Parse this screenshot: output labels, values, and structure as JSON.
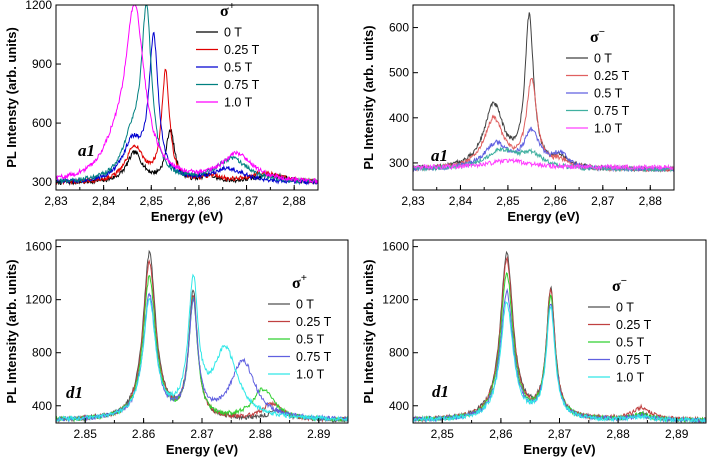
{
  "chart_data": [
    {
      "id": "a1-sigma-plus",
      "type": "line",
      "panel_tag": "a1",
      "legend_title": "σ",
      "legend_sup": "+",
      "xlabel": "Energy (eV)",
      "ylabel": "PL Intensty (arb. units)",
      "xlim": [
        2.83,
        2.885
      ],
      "ylim": [
        260,
        1200
      ],
      "xticks": [
        2.83,
        2.84,
        2.85,
        2.86,
        2.87,
        2.88
      ],
      "xtick_labels": [
        "2,83",
        "2,84",
        "2,85",
        "2,86",
        "2,87",
        "2,88"
      ],
      "yticks": [
        300,
        600,
        900,
        1200
      ],
      "ytick_labels": [
        "300",
        "600",
        "900",
        "1200"
      ],
      "legend_position": "top-right",
      "series": [
        {
          "name": "0 T",
          "color": "#000000",
          "baseline": 295,
          "peaks": [
            [
              2.8465,
              150,
              0.002
            ],
            [
              2.854,
              260,
              0.0011
            ],
            [
              2.862,
              30,
              0.002
            ],
            [
              2.875,
              40,
              0.004
            ]
          ]
        },
        {
          "name": "0.25 T",
          "color": "#e00000",
          "baseline": 295,
          "peaks": [
            [
              2.8465,
              180,
              0.0022
            ],
            [
              2.853,
              550,
              0.001
            ],
            [
              2.863,
              30,
              0.002
            ],
            [
              2.874,
              50,
              0.004
            ]
          ]
        },
        {
          "name": "0.5 T",
          "color": "#0000d0",
          "baseline": 295,
          "peaks": [
            [
              2.846,
              190,
              0.0025
            ],
            [
              2.8505,
              710,
              0.0012
            ],
            [
              2.866,
              70,
              0.004
            ]
          ]
        },
        {
          "name": "0.75 T",
          "color": "#008080",
          "baseline": 295,
          "peaks": [
            [
              2.846,
              200,
              0.0025
            ],
            [
              2.849,
              820,
              0.0013
            ],
            [
              2.867,
              120,
              0.004
            ]
          ]
        },
        {
          "name": "1.0 T",
          "color": "#ff00ff",
          "baseline": 295,
          "peaks": [
            [
              2.8465,
              880,
              0.0025
            ],
            [
              2.842,
              100,
              0.003
            ],
            [
              2.868,
              140,
              0.004
            ]
          ]
        }
      ]
    },
    {
      "id": "a1-sigma-minus",
      "type": "line",
      "panel_tag": "a1",
      "legend_title": "σ",
      "legend_sup": "−",
      "xlabel": "Energy (eV)",
      "ylabel": "PL Intensity (arb. units)",
      "xlim": [
        2.83,
        2.885
      ],
      "ylim": [
        240,
        650
      ],
      "xticks": [
        2.83,
        2.84,
        2.85,
        2.86,
        2.87,
        2.88
      ],
      "xtick_labels": [
        "2,83",
        "2,84",
        "2,85",
        "2,86",
        "2,87",
        "2,88"
      ],
      "yticks": [
        300,
        400,
        500,
        600
      ],
      "ytick_labels": [
        "300",
        "400",
        "500",
        "600"
      ],
      "legend_position": "top-right",
      "series": [
        {
          "name": "0 T",
          "color": "#404040",
          "baseline": 285,
          "peaks": [
            [
              2.847,
              140,
              0.0025
            ],
            [
              2.8545,
              330,
              0.0011
            ],
            [
              2.861,
              20,
              0.002
            ]
          ]
        },
        {
          "name": "0.25 T",
          "color": "#e06060",
          "baseline": 285,
          "peaks": [
            [
              2.847,
              110,
              0.0025
            ],
            [
              2.855,
              195,
              0.0013
            ],
            [
              2.861,
              15,
              0.002
            ]
          ]
        },
        {
          "name": "0.5 T",
          "color": "#6060e0",
          "baseline": 285,
          "peaks": [
            [
              2.8475,
              55,
              0.003
            ],
            [
              2.855,
              80,
              0.002
            ],
            [
              2.861,
              30,
              0.002
            ]
          ]
        },
        {
          "name": "0.75 T",
          "color": "#40b0a0",
          "baseline": 285,
          "peaks": [
            [
              2.8485,
              40,
              0.004
            ],
            [
              2.855,
              30,
              0.003
            ]
          ]
        },
        {
          "name": "1.0 T",
          "color": "#ff40ff",
          "baseline": 290,
          "peaks": [
            [
              2.85,
              15,
              0.005
            ]
          ]
        }
      ]
    },
    {
      "id": "d1-sigma-plus",
      "type": "line",
      "panel_tag": "d1",
      "legend_title": "σ",
      "legend_sup": "+",
      "xlabel": "Energy (eV)",
      "ylabel": "PL Intensity (arb. units)",
      "xlim": [
        2.845,
        2.895
      ],
      "ylim": [
        270,
        1650
      ],
      "xticks": [
        2.85,
        2.86,
        2.87,
        2.88,
        2.89
      ],
      "xtick_labels": [
        "2.85",
        "2.86",
        "2.87",
        "2.88",
        "2.89"
      ],
      "yticks": [
        400,
        800,
        1200,
        1600
      ],
      "ytick_labels": [
        "400",
        "800",
        "1200",
        "1600"
      ],
      "legend_position": "top-right",
      "series": [
        {
          "name": "0 T",
          "color": "#505050",
          "baseline": 290,
          "peaks": [
            [
              2.861,
              1250,
              0.0013
            ],
            [
              2.8685,
              950,
              0.0009
            ],
            [
              2.883,
              70,
              0.0018
            ]
          ]
        },
        {
          "name": "0.25 T",
          "color": "#c04040",
          "baseline": 290,
          "peaks": [
            [
              2.861,
              1180,
              0.0013
            ],
            [
              2.8685,
              900,
              0.0009
            ],
            [
              2.882,
              120,
              0.002
            ]
          ]
        },
        {
          "name": "0.5 T",
          "color": "#30d030",
          "baseline": 290,
          "peaks": [
            [
              2.861,
              1070,
              0.0013
            ],
            [
              2.8685,
              880,
              0.0009
            ],
            [
              2.8805,
              230,
              0.0022
            ]
          ]
        },
        {
          "name": "0.75 T",
          "color": "#6060e0",
          "baseline": 290,
          "peaks": [
            [
              2.861,
              930,
              0.0013
            ],
            [
              2.8685,
              860,
              0.0009
            ],
            [
              2.877,
              440,
              0.0025
            ]
          ]
        },
        {
          "name": "1.0 T",
          "color": "#30e8e8",
          "baseline": 290,
          "peaks": [
            [
              2.861,
              880,
              0.0013
            ],
            [
              2.8685,
              990,
              0.001
            ],
            [
              2.874,
              520,
              0.0025
            ]
          ]
        }
      ]
    },
    {
      "id": "d1-sigma-minus",
      "type": "line",
      "panel_tag": "d1",
      "legend_title": "σ",
      "legend_sup": "−",
      "xlabel": "Energy (eV)",
      "ylabel": "PL Intensity (arb. units)",
      "xlim": [
        2.845,
        2.895
      ],
      "ylim": [
        270,
        1650
      ],
      "xticks": [
        2.85,
        2.86,
        2.87,
        2.88,
        2.89
      ],
      "xtick_labels": [
        "2,85",
        "2,86",
        "2,87",
        "2,88",
        "2,89"
      ],
      "yticks": [
        400,
        800,
        1200,
        1600
      ],
      "ytick_labels": [
        "400",
        "800",
        "1200",
        "1600"
      ],
      "legend_position": "top-right",
      "series": [
        {
          "name": "0 T",
          "color": "#505050",
          "baseline": 290,
          "peaks": [
            [
              2.861,
              1250,
              0.0013
            ],
            [
              2.8685,
              960,
              0.0009
            ],
            [
              2.884,
              40,
              0.0018
            ]
          ]
        },
        {
          "name": "0.25 T",
          "color": "#c04040",
          "baseline": 290,
          "peaks": [
            [
              2.861,
              1200,
              0.0013
            ],
            [
              2.8685,
              950,
              0.0009
            ],
            [
              2.884,
              90,
              0.0018
            ]
          ]
        },
        {
          "name": "0.5 T",
          "color": "#30d030",
          "baseline": 290,
          "peaks": [
            [
              2.861,
              1100,
              0.0013
            ],
            [
              2.8685,
              900,
              0.0009
            ],
            [
              2.884,
              40,
              0.0018
            ]
          ]
        },
        {
          "name": "0.75 T",
          "color": "#6060e0",
          "baseline": 290,
          "peaks": [
            [
              2.861,
              960,
              0.0013
            ],
            [
              2.8685,
              860,
              0.0009
            ],
            [
              2.884,
              30,
              0.0018
            ]
          ]
        },
        {
          "name": "1.0 T",
          "color": "#30e8e8",
          "baseline": 290,
          "peaks": [
            [
              2.861,
              880,
              0.0013
            ],
            [
              2.8685,
              830,
              0.0009
            ],
            [
              2.884,
              25,
              0.0018
            ]
          ]
        }
      ]
    }
  ]
}
